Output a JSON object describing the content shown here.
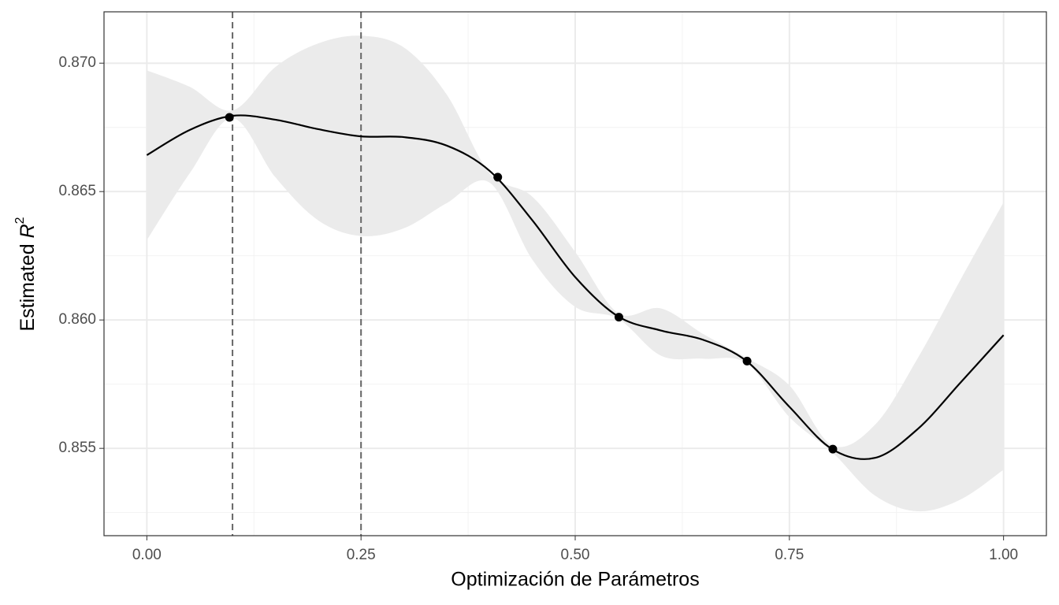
{
  "chart_data": {
    "type": "line",
    "x_label": "Optimización de Parámetros",
    "y_label": "Estimated",
    "y_label_symbol": "R",
    "y_label_sup": "2",
    "xlim": [
      -0.05,
      1.05
    ],
    "ylim": [
      0.8516,
      0.872
    ],
    "xticks": [
      {
        "value": 0,
        "label": "0.00"
      },
      {
        "value": 0.25,
        "label": "0.25"
      },
      {
        "value": 0.5,
        "label": "0.50"
      },
      {
        "value": 0.75,
        "label": "0.75"
      },
      {
        "value": 1,
        "label": "1.00"
      }
    ],
    "yticks": [
      {
        "value": 0.855,
        "label": "0.855"
      },
      {
        "value": 0.86,
        "label": "0.860"
      },
      {
        "value": 0.865,
        "label": "0.865"
      },
      {
        "value": 0.87,
        "label": "0.870"
      }
    ],
    "grid": true,
    "x": [
      0,
      0.05,
      0.1,
      0.15,
      0.2,
      0.25,
      0.3,
      0.35,
      0.4,
      0.45,
      0.5,
      0.55,
      0.6,
      0.65,
      0.7,
      0.75,
      0.8,
      0.85,
      0.9,
      0.95,
      1.0
    ],
    "series": [
      {
        "color": "#000000",
        "values": [
          0.86642,
          0.8674,
          0.86795,
          0.8678,
          0.86743,
          0.86715,
          0.86712,
          0.86679,
          0.86581,
          0.86388,
          0.86167,
          0.86014,
          0.85959,
          0.85922,
          0.8584,
          0.85662,
          0.85497,
          0.85463,
          0.85576,
          0.85757,
          0.85941
        ],
        "upper": [
          0.86972,
          0.86908,
          0.86816,
          0.86985,
          0.87077,
          0.87107,
          0.87061,
          0.86878,
          0.86572,
          0.8648,
          0.86265,
          0.86027,
          0.86045,
          0.85944,
          0.85852,
          0.85745,
          0.85512,
          0.85592,
          0.85852,
          0.86158,
          0.86458
        ],
        "lower": [
          0.86311,
          0.86571,
          0.86786,
          0.86556,
          0.86388,
          0.86327,
          0.86357,
          0.86455,
          0.86535,
          0.86235,
          0.86051,
          0.86005,
          0.85861,
          0.85849,
          0.85831,
          0.85622,
          0.85485,
          0.85316,
          0.85255,
          0.85301,
          0.85417
        ],
        "band_color": "#ebebeb"
      }
    ],
    "points": {
      "x": [
        0.0964,
        0.4096,
        0.551,
        0.7006,
        0.8007
      ],
      "values": [
        0.86789,
        0.86556,
        0.86011,
        0.8584,
        0.85497
      ],
      "color": "#000000"
    },
    "vlines": {
      "x": [
        0.1,
        0.25
      ],
      "color": "#666666"
    }
  }
}
